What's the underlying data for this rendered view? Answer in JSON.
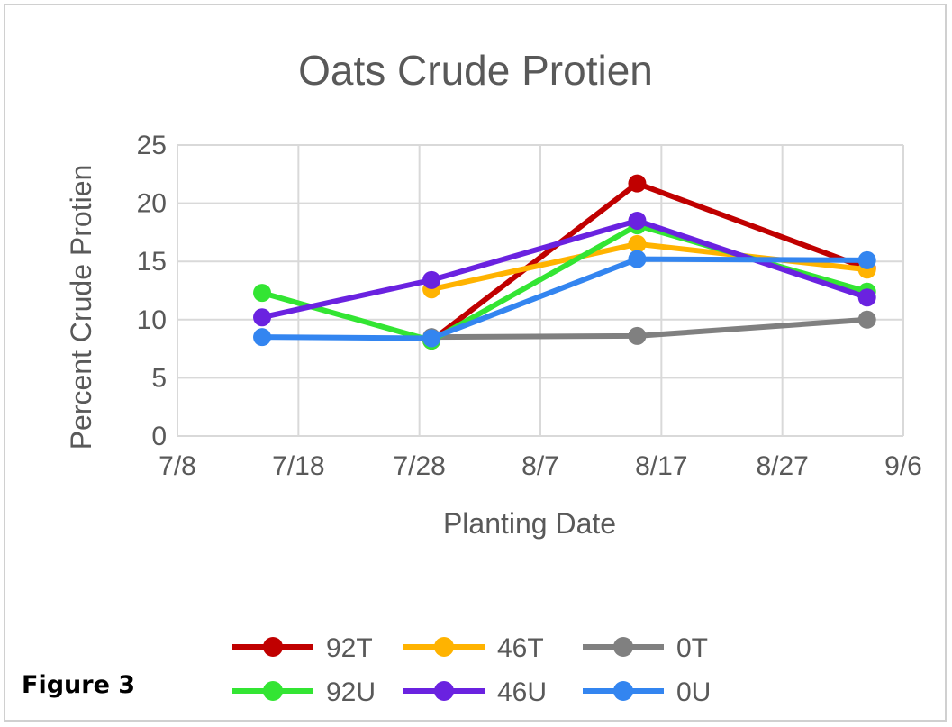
{
  "figure_label": "Figure 3",
  "chart_data": {
    "type": "line",
    "title": "Oats Crude Protien",
    "xlabel": "Planting Date",
    "ylabel": "Percent Crude Protien",
    "x_tick_labels": [
      "7/8",
      "7/18",
      "7/28",
      "8/7",
      "8/17",
      "8/27",
      "9/6"
    ],
    "x_tick_days": [
      0,
      10,
      20,
      30,
      40,
      50,
      60
    ],
    "xlim": [
      0,
      60
    ],
    "ylim": [
      0,
      25
    ],
    "y_ticks": [
      0,
      5,
      10,
      15,
      20,
      25
    ],
    "grid": true,
    "legend_position": "bottom",
    "x_dates": [
      "7/15",
      "7/29",
      "8/15",
      "9/3"
    ],
    "series": [
      {
        "name": "92T",
        "color": "#c00000",
        "values": [
          null,
          8.2,
          21.7,
          14.4
        ]
      },
      {
        "name": "46T",
        "color": "#ffb300",
        "values": [
          null,
          12.6,
          16.5,
          14.3
        ]
      },
      {
        "name": "0T",
        "color": "#808080",
        "values": [
          null,
          8.5,
          8.6,
          10.0
        ]
      },
      {
        "name": "92U",
        "color": "#33e533",
        "values": [
          12.3,
          8.2,
          18.1,
          12.4
        ]
      },
      {
        "name": "46U",
        "color": "#6a22e0",
        "values": [
          10.2,
          13.4,
          18.5,
          11.9
        ]
      },
      {
        "name": "0U",
        "color": "#3385f0",
        "values": [
          8.5,
          8.4,
          15.2,
          15.1
        ]
      }
    ]
  }
}
